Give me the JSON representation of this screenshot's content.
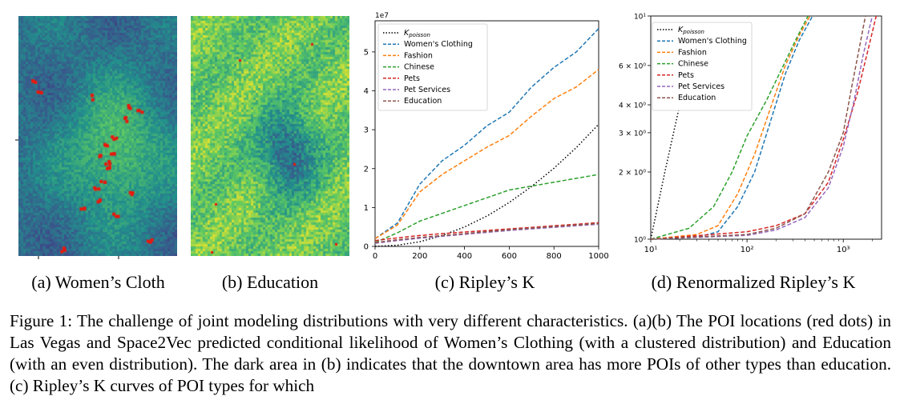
{
  "figure": {
    "subcaptions": [
      "(a) Women’s Cloth",
      "(b) Education",
      "(c) Ripley’s K",
      "(d) Renormalized Ripley’s K"
    ],
    "caption_label": "Figure 1:",
    "caption_text": "The challenge of joint modeling distributions with very different characteristics. (a)(b) The POI locations (red dots) in Las Vegas and Space2Vec predicted conditional likelihood of Women’s Clothing (with a clustered distribution) and Education (with an even distribution). The dark area in (b) indicates that the downtown area has more POIs of other types than education. (c) Ripley’s K curves of POI types for which"
  },
  "colors": {
    "womens_clothing": "#1f77b4",
    "fashion": "#ff7f0e",
    "chinese": "#2ca02c",
    "pets": "#d62728",
    "pet_services": "#9467bd",
    "education": "#8c564b",
    "k_poisson": "#000000",
    "poi_dots": "#e8190e"
  },
  "heatmaps": [
    {
      "name": "womens-clothing-heatmap",
      "colormap": "viridis",
      "pattern": "clustered"
    },
    {
      "name": "education-heatmap",
      "colormap": "viridis",
      "pattern": "even"
    }
  ],
  "chart_data": [
    {
      "type": "line",
      "title": "",
      "xlabel": "",
      "ylabel": "",
      "y_scale_label": "1e7",
      "xlim": [
        0,
        1000
      ],
      "ylim": [
        0,
        5.8
      ],
      "x_ticks": [
        0,
        200,
        400,
        600,
        800,
        1000
      ],
      "y_ticks": [
        0,
        1,
        2,
        3,
        4,
        5
      ],
      "legend_position": "top-left",
      "x": [
        0,
        100,
        200,
        300,
        400,
        500,
        600,
        700,
        800,
        900,
        1000
      ],
      "series": [
        {
          "name": "K_poisson",
          "style": "dotted",
          "color_key": "k_poisson",
          "values": [
            0.0,
            0.03,
            0.12,
            0.28,
            0.5,
            0.78,
            1.13,
            1.54,
            2.01,
            2.54,
            3.14
          ]
        },
        {
          "name": "Women's Clothing",
          "style": "dashed",
          "color_key": "womens_clothing",
          "values": [
            0.2,
            0.6,
            1.6,
            2.2,
            2.6,
            3.1,
            3.45,
            4.1,
            4.6,
            5.0,
            5.6
          ]
        },
        {
          "name": "Fashion",
          "style": "dashed",
          "color_key": "fashion",
          "values": [
            0.2,
            0.55,
            1.4,
            1.85,
            2.2,
            2.55,
            2.85,
            3.35,
            3.8,
            4.1,
            4.55
          ]
        },
        {
          "name": "Chinese",
          "style": "dashed",
          "color_key": "chinese",
          "values": [
            0.1,
            0.35,
            0.65,
            0.85,
            1.05,
            1.25,
            1.45,
            1.55,
            1.65,
            1.75,
            1.85
          ]
        },
        {
          "name": "Pets",
          "style": "dashed",
          "color_key": "pets",
          "values": [
            0.15,
            0.22,
            0.28,
            0.33,
            0.37,
            0.41,
            0.45,
            0.49,
            0.53,
            0.57,
            0.61
          ]
        },
        {
          "name": "Pet Services",
          "style": "dashed",
          "color_key": "pet_services",
          "values": [
            0.08,
            0.15,
            0.21,
            0.26,
            0.31,
            0.36,
            0.41,
            0.45,
            0.49,
            0.53,
            0.57
          ]
        },
        {
          "name": "Education",
          "style": "dashed",
          "color_key": "education",
          "values": [
            0.1,
            0.17,
            0.23,
            0.28,
            0.33,
            0.38,
            0.43,
            0.47,
            0.51,
            0.55,
            0.59
          ]
        }
      ]
    },
    {
      "type": "line",
      "title": "",
      "xlabel": "",
      "ylabel": "",
      "x_scale": "log",
      "y_scale": "log",
      "xlim": [
        10,
        2500
      ],
      "ylim": [
        1,
        10
      ],
      "x_tick_labels": [
        "10¹",
        "10²",
        "10³"
      ],
      "y_tick_labels": [
        "10⁰",
        "2 × 10⁰",
        "3 × 10⁰",
        "4 × 10⁰",
        "6 × 10⁰",
        "10¹"
      ],
      "legend_position": "top-left",
      "series": [
        {
          "name": "K_poisson",
          "style": "dotted",
          "color_key": "k_poisson",
          "x": [
            10,
            14,
            20,
            28
          ],
          "values": [
            1.0,
            2.0,
            4.0,
            7.8
          ]
        },
        {
          "name": "Women's Clothing",
          "style": "dashed",
          "color_key": "womens_clothing",
          "x": [
            10,
            30,
            50,
            80,
            120,
            180,
            250,
            350,
            480
          ],
          "values": [
            1.0,
            1.02,
            1.08,
            1.4,
            2.0,
            3.5,
            5.5,
            7.8,
            10.0
          ]
        },
        {
          "name": "Fashion",
          "style": "dashed",
          "color_key": "fashion",
          "x": [
            10,
            30,
            50,
            80,
            120,
            180,
            250,
            350,
            450
          ],
          "values": [
            1.0,
            1.05,
            1.15,
            1.6,
            2.4,
            4.0,
            6.0,
            8.2,
            10.0
          ]
        },
        {
          "name": "Chinese",
          "style": "dashed",
          "color_key": "chinese",
          "x": [
            10,
            25,
            45,
            70,
            100,
            160,
            230,
            320,
            430
          ],
          "values": [
            1.0,
            1.12,
            1.4,
            2.0,
            2.9,
            4.2,
            5.8,
            7.8,
            10.0
          ]
        },
        {
          "name": "Pets",
          "style": "dashed",
          "color_key": "pets",
          "x": [
            10,
            100,
            200,
            400,
            700,
            1000,
            1400,
            1800,
            2200
          ],
          "values": [
            1.0,
            1.08,
            1.15,
            1.3,
            1.8,
            2.8,
            4.5,
            7.0,
            10.0
          ]
        },
        {
          "name": "Pet Services",
          "style": "dashed",
          "color_key": "pet_services",
          "x": [
            10,
            100,
            200,
            400,
            700,
            1000,
            1300,
            1600,
            2000
          ],
          "values": [
            1.0,
            1.04,
            1.1,
            1.25,
            1.7,
            2.6,
            4.2,
            6.6,
            10.0
          ]
        },
        {
          "name": "Education",
          "style": "dashed",
          "color_key": "education",
          "x": [
            10,
            100,
            200,
            400,
            700,
            1000,
            1200,
            1450,
            1700
          ],
          "values": [
            1.0,
            1.05,
            1.12,
            1.3,
            2.0,
            3.0,
            4.6,
            7.0,
            10.0
          ]
        }
      ]
    }
  ]
}
